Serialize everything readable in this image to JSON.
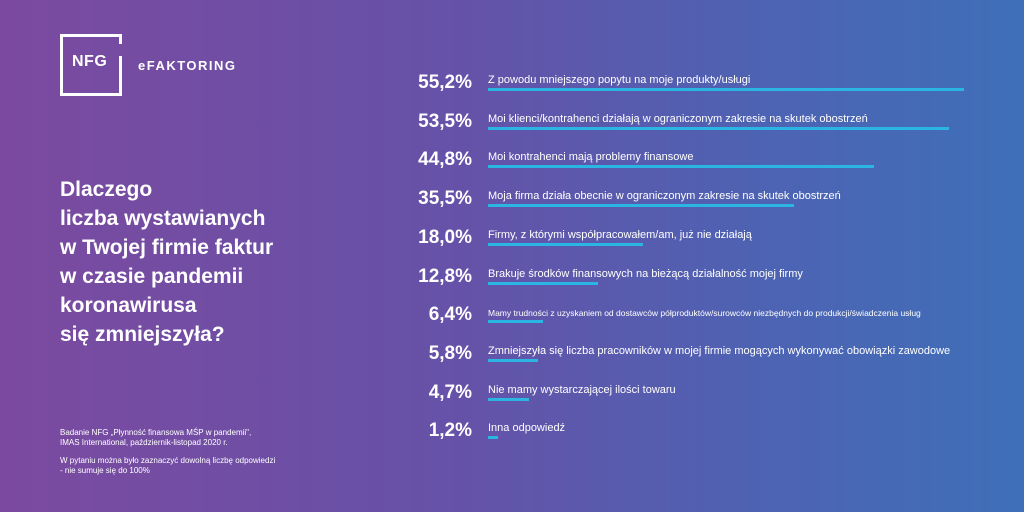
{
  "logo": {
    "mark": "NFG",
    "brand": "eFAKTORING"
  },
  "question": [
    "Dlaczego",
    "liczba wystawianych",
    "w Twojej firmie faktur",
    "w czasie pandemii",
    "koronawirusa",
    "się zmniejszyła?"
  ],
  "footnote": {
    "source": [
      "Badanie NFG „Płynność finansowa MŚP w pandemii\",",
      "IMAS International, październik-listopad 2020 r."
    ],
    "note": [
      "W  pytaniu można było zaznaczyć dowolną liczbę odpowiedzi",
      "- nie sumuje się do 100%"
    ]
  },
  "colors": {
    "bar": "#2bb5e2",
    "text": "#ffffff"
  },
  "chart_data": {
    "type": "bar",
    "orientation": "horizontal",
    "categories": [
      "Z powodu mniejszego popytu na moje produkty/usługi",
      "Moi klienci/kontrahenci działają w ograniczonym zakresie na skutek obostrzeń",
      "Moi kontrahenci mają problemy finansowe",
      "Moja firma działa obecnie w ograniczonym zakresie na skutek obostrzeń",
      "Firmy, z którymi współpracowałem/am, już nie działają",
      "Brakuje środków finansowych na bieżącą działalność mojej firmy",
      "Mamy trudności z uzyskaniem od dostawców półproduktów/surowców niezbędnych do produkcji/świadczenia usług",
      "Zmniejszyła się liczba pracowników w mojej firmie mogących wykonywać obowiązki zawodowe",
      "Nie mamy wystarczającej ilości towaru",
      "Inna odpowiedź"
    ],
    "values": [
      55.2,
      53.5,
      44.8,
      35.5,
      18.0,
      12.8,
      6.4,
      5.8,
      4.7,
      1.2
    ],
    "value_labels": [
      "55,2%",
      "53,5%",
      "44,8%",
      "35,5%",
      "18,0%",
      "12,8%",
      "6,4%",
      "5,8%",
      "4,7%",
      "1,2%"
    ],
    "grid": false
  }
}
